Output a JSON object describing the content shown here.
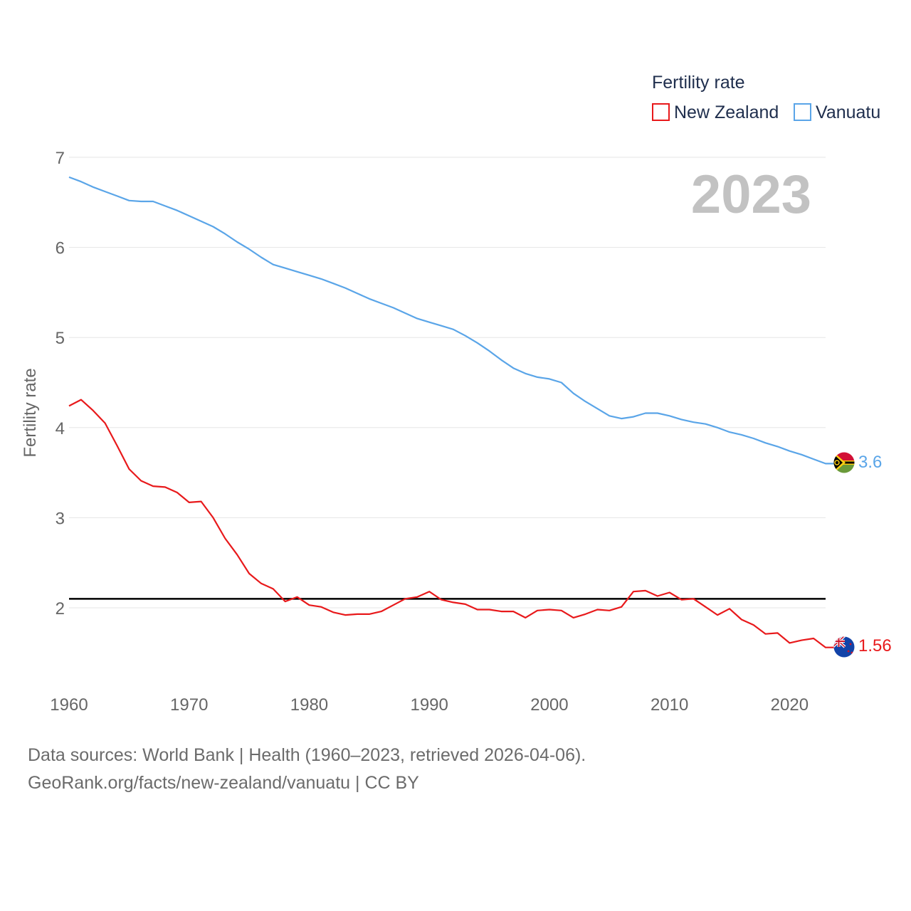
{
  "chart_data": {
    "type": "line",
    "title": "",
    "legend_title": "Fertility rate",
    "legend_position": "top-right",
    "year_label": "2023",
    "xlabel": "",
    "ylabel": "Fertility rate",
    "xlim": [
      1960,
      2023
    ],
    "ylim": [
      1.3,
      7
    ],
    "x_ticks": [
      1960,
      1970,
      1980,
      1990,
      2000,
      2010,
      2020
    ],
    "y_ticks": [
      2,
      3,
      4,
      5,
      6,
      7
    ],
    "reference_line": 2.1,
    "x": [
      1960,
      1961,
      1962,
      1963,
      1964,
      1965,
      1966,
      1967,
      1968,
      1969,
      1970,
      1971,
      1972,
      1973,
      1974,
      1975,
      1976,
      1977,
      1978,
      1979,
      1980,
      1981,
      1982,
      1983,
      1984,
      1985,
      1986,
      1987,
      1988,
      1989,
      1990,
      1991,
      1992,
      1993,
      1994,
      1995,
      1996,
      1997,
      1998,
      1999,
      2000,
      2001,
      2002,
      2003,
      2004,
      2005,
      2006,
      2007,
      2008,
      2009,
      2010,
      2011,
      2012,
      2013,
      2014,
      2015,
      2016,
      2017,
      2018,
      2019,
      2020,
      2021,
      2022,
      2023
    ],
    "series": [
      {
        "name": "New Zealand",
        "color": "#e8191b",
        "end_label": "1.56",
        "values": [
          4.24,
          4.31,
          4.19,
          4.05,
          3.8,
          3.54,
          3.41,
          3.35,
          3.34,
          3.28,
          3.17,
          3.18,
          3.0,
          2.77,
          2.59,
          2.38,
          2.27,
          2.21,
          2.07,
          2.12,
          2.03,
          2.01,
          1.95,
          1.92,
          1.93,
          1.93,
          1.96,
          2.03,
          2.1,
          2.12,
          2.18,
          2.09,
          2.06,
          2.04,
          1.98,
          1.98,
          1.96,
          1.96,
          1.89,
          1.97,
          1.98,
          1.97,
          1.89,
          1.93,
          1.98,
          1.97,
          2.01,
          2.18,
          2.19,
          2.13,
          2.17,
          2.09,
          2.1,
          2.01,
          1.92,
          1.99,
          1.87,
          1.81,
          1.71,
          1.72,
          1.61,
          1.64,
          1.66,
          1.56
        ]
      },
      {
        "name": "Vanuatu",
        "color": "#5aa5e8",
        "end_label": "3.6",
        "values": [
          6.78,
          6.73,
          6.67,
          6.62,
          6.57,
          6.52,
          6.51,
          6.51,
          6.46,
          6.41,
          6.35,
          6.29,
          6.23,
          6.15,
          6.06,
          5.98,
          5.89,
          5.81,
          5.77,
          5.73,
          5.69,
          5.65,
          5.6,
          5.55,
          5.49,
          5.43,
          5.38,
          5.33,
          5.27,
          5.21,
          5.17,
          5.13,
          5.09,
          5.02,
          4.94,
          4.85,
          4.75,
          4.66,
          4.6,
          4.56,
          4.54,
          4.5,
          4.38,
          4.29,
          4.21,
          4.13,
          4.1,
          4.12,
          4.16,
          4.16,
          4.13,
          4.09,
          4.06,
          4.04,
          4.0,
          3.95,
          3.92,
          3.88,
          3.83,
          3.79,
          3.74,
          3.7,
          3.65,
          3.6
        ]
      }
    ]
  },
  "footer": {
    "sources": "Data sources: World Bank | Health (1960–2023, retrieved 2026-04-06).",
    "credit": "GeoRank.org/facts/new-zealand/vanuatu | CC BY"
  }
}
